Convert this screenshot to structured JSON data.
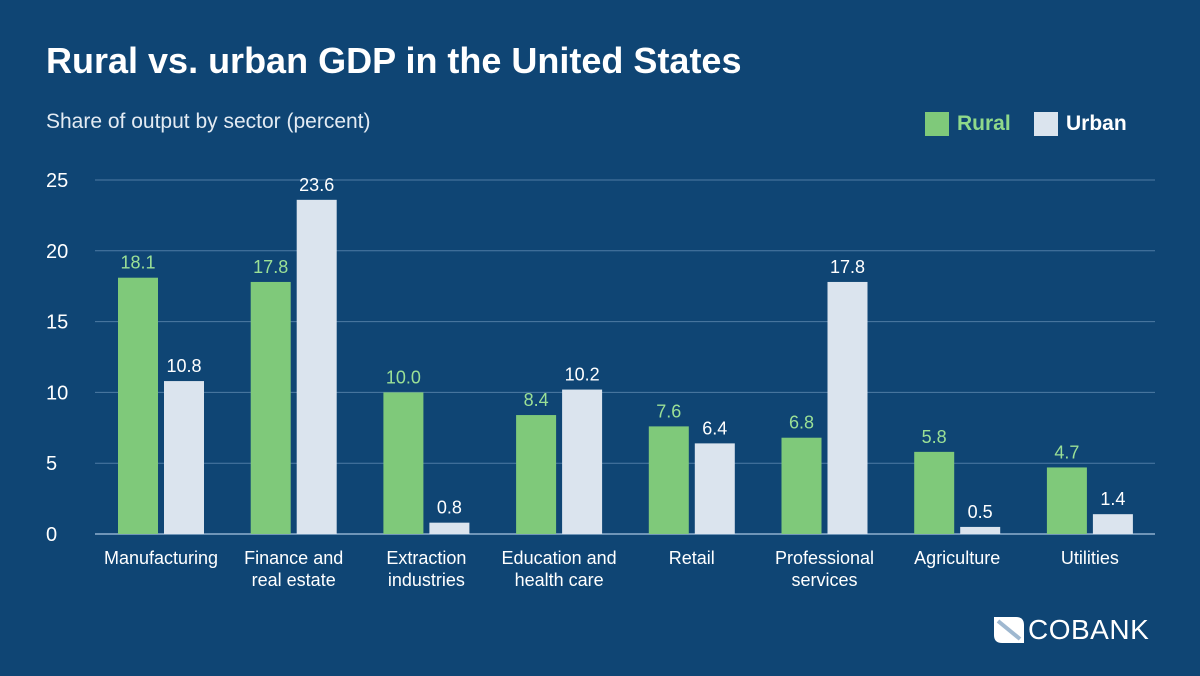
{
  "chart_data": {
    "type": "bar",
    "title": "Rural vs. urban GDP in the United States",
    "subtitle": "Share of output by sector (percent)",
    "categories": [
      [
        "Manufacturing"
      ],
      [
        "Finance and",
        "real estate"
      ],
      [
        "Extraction",
        "industries"
      ],
      [
        "Education and",
        "health care"
      ],
      [
        "Retail"
      ],
      [
        "Professional",
        "services"
      ],
      [
        "Agriculture"
      ],
      [
        "Utilities"
      ]
    ],
    "series": [
      {
        "name": "Rural",
        "color": "#7fc97a",
        "values": [
          18.1,
          17.8,
          10.0,
          8.4,
          7.6,
          6.8,
          5.8,
          4.7
        ]
      },
      {
        "name": "Urban",
        "color": "#dbe4ee",
        "values": [
          10.8,
          23.6,
          0.8,
          10.2,
          6.4,
          17.8,
          0.5,
          1.4
        ]
      }
    ],
    "ylim": [
      0,
      25
    ],
    "yticks": [
      0,
      5,
      10,
      15,
      20,
      25
    ],
    "grid": true,
    "legend": "top-right",
    "background": "#0f4574"
  },
  "logo": {
    "text": "COBANK"
  }
}
